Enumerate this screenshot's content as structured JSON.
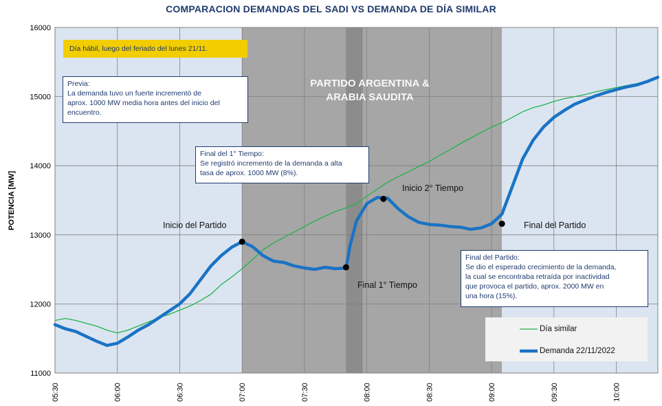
{
  "chart_data": {
    "type": "line",
    "title": "COMPARACION DEMANDAS DEL SADI VS DEMANDA DE DÍA SIMILAR",
    "ylabel": "POTENCIA [MW]",
    "xlabel": "",
    "ylim": [
      11000,
      16000
    ],
    "yticks": [
      11000,
      12000,
      13000,
      14000,
      15000,
      16000
    ],
    "ytick_labels": [
      "11000",
      "12000",
      "13000",
      "14000",
      "15000",
      "16000"
    ],
    "xlim": [
      "05:30",
      "10:20"
    ],
    "xticks": [
      "05:30",
      "06:00",
      "06:30",
      "07:00",
      "07:30",
      "08:00",
      "08:30",
      "09:00",
      "09:30",
      "10:00"
    ],
    "grid": true,
    "legend_position": "bottom-right",
    "colors": {
      "dia_similar": "#22b14c",
      "demanda": "#1a73c5",
      "band_light": "#dbe5f1",
      "band_match": "#a6a6a6",
      "band_break": "#8c8c8c",
      "yellow": "#f2cd00",
      "text_blue": "#1f3a6e"
    },
    "bands": [
      {
        "from": "05:30",
        "to": "07:00",
        "kind": "light"
      },
      {
        "from": "07:00",
        "to": "09:05",
        "kind": "match"
      },
      {
        "from": "07:50",
        "to": "07:58",
        "kind": "break"
      },
      {
        "from": "09:05",
        "to": "10:20",
        "kind": "light"
      }
    ],
    "series": [
      {
        "name": "Día similar",
        "x": [
          "05:30",
          "05:35",
          "05:40",
          "05:45",
          "05:50",
          "05:55",
          "06:00",
          "06:05",
          "06:10",
          "06:15",
          "06:20",
          "06:25",
          "06:30",
          "06:35",
          "06:40",
          "06:45",
          "06:50",
          "06:55",
          "07:00",
          "07:05",
          "07:10",
          "07:15",
          "07:20",
          "07:25",
          "07:30",
          "07:35",
          "07:40",
          "07:45",
          "07:50",
          "07:55",
          "08:00",
          "08:05",
          "08:10",
          "08:15",
          "08:20",
          "08:25",
          "08:30",
          "08:35",
          "08:40",
          "08:45",
          "08:50",
          "08:55",
          "09:00",
          "09:05",
          "09:10",
          "09:15",
          "09:20",
          "09:25",
          "09:30",
          "09:35",
          "09:40",
          "09:45",
          "09:50",
          "09:55",
          "10:00",
          "10:05",
          "10:10",
          "10:15",
          "10:20"
        ],
        "values": [
          11760,
          11790,
          11760,
          11720,
          11680,
          11620,
          11580,
          11620,
          11680,
          11740,
          11800,
          11850,
          11910,
          11970,
          12050,
          12140,
          12280,
          12390,
          12510,
          12640,
          12780,
          12880,
          12960,
          13040,
          13120,
          13200,
          13270,
          13340,
          13390,
          13450,
          13560,
          13660,
          13760,
          13840,
          13910,
          13990,
          14060,
          14150,
          14230,
          14320,
          14400,
          14480,
          14560,
          14620,
          14700,
          14780,
          14840,
          14880,
          14930,
          14970,
          15000,
          15030,
          15070,
          15100,
          15130,
          15160,
          15190,
          15230,
          15270
        ]
      },
      {
        "name": "Demanda 22/11/2022",
        "x": [
          "05:30",
          "05:35",
          "05:40",
          "05:45",
          "05:50",
          "05:55",
          "06:00",
          "06:05",
          "06:10",
          "06:15",
          "06:20",
          "06:25",
          "06:30",
          "06:35",
          "06:40",
          "06:45",
          "06:50",
          "06:55",
          "07:00",
          "07:05",
          "07:10",
          "07:15",
          "07:20",
          "07:25",
          "07:30",
          "07:35",
          "07:40",
          "07:45",
          "07:50",
          "07:52",
          "07:55",
          "08:00",
          "08:05",
          "08:10",
          "08:15",
          "08:20",
          "08:25",
          "08:30",
          "08:35",
          "08:40",
          "08:45",
          "08:50",
          "08:55",
          "09:00",
          "09:05",
          "09:10",
          "09:15",
          "09:20",
          "09:25",
          "09:30",
          "09:35",
          "09:40",
          "09:45",
          "09:50",
          "09:55",
          "10:00",
          "10:05",
          "10:10",
          "10:15",
          "10:20"
        ],
        "values": [
          11700,
          11640,
          11600,
          11530,
          11460,
          11400,
          11430,
          11520,
          11620,
          11700,
          11800,
          11900,
          12000,
          12150,
          12350,
          12550,
          12700,
          12820,
          12900,
          12830,
          12700,
          12620,
          12600,
          12550,
          12520,
          12500,
          12530,
          12510,
          12520,
          12850,
          13200,
          13450,
          13540,
          13530,
          13380,
          13260,
          13180,
          13150,
          13140,
          13120,
          13110,
          13080,
          13100,
          13160,
          13300,
          13700,
          14100,
          14370,
          14560,
          14700,
          14800,
          14890,
          14950,
          15010,
          15060,
          15100,
          15140,
          15170,
          15220,
          15280
        ]
      }
    ],
    "markers": [
      {
        "x": "07:00",
        "y": 12900,
        "label": "Inicio del Partido"
      },
      {
        "x": "07:50",
        "y": 12530,
        "label": "Final 1° Tiempo"
      },
      {
        "x": "08:08",
        "y": 13520,
        "label": "Inicio 2° Tiempo"
      },
      {
        "x": "09:05",
        "y": 13160,
        "label": "Final del Partido"
      }
    ],
    "annotations": {
      "yellow_note": "Día hábil, luego del feriado del lunes 21/11.",
      "previa": [
        "Previa:",
        "La demanda tuvo un fuerte incrementó de",
        "aprox. 1000 MW media hora antes del inicio del",
        "encuentro."
      ],
      "primer_tiempo": [
        "Final del 1° Tiempo:",
        "Se registró incremento de la demanda a alta",
        "tasa de aprox. 1000 MW (8%)."
      ],
      "final_partido": [
        "Final del Partido:",
        "Se dio el esperado crecimiento de la demanda,",
        "la cual se encontraba retraída por inactividad",
        "que provoca el partido, aprox. 2000 MW en",
        "una hora (15%)."
      ],
      "match_title": [
        "PARTIDO ARGENTINA &",
        "ARABIA SAUDITA"
      ]
    }
  }
}
